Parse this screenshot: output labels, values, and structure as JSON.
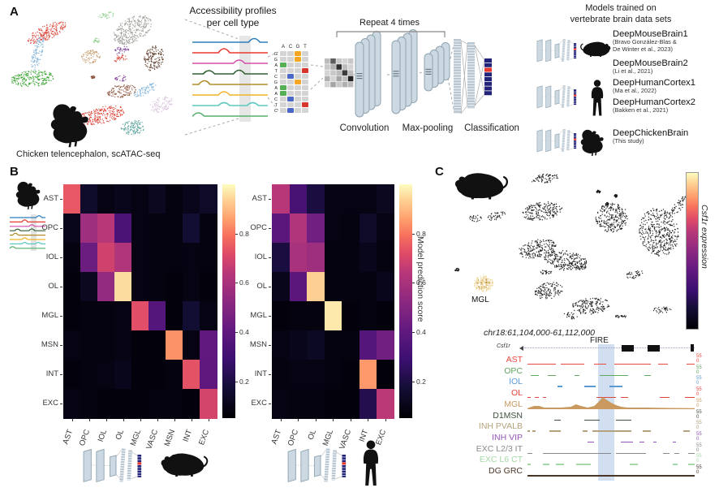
{
  "figure": {
    "panelA": {
      "label": "A",
      "umap_caption": "Chicken telencephalon, scATAC-seq",
      "profiles_title": [
        "Accessibility profiles",
        "per cell type"
      ],
      "profile_trace_colors": [
        "#2e7ebc",
        "#e8392f",
        "#d44fa8",
        "#2f5e33",
        "#b08d2a",
        "#f0b429",
        "#5fc9c2",
        "#54b06a"
      ],
      "umap_cluster_colors": [
        "#d93a2b",
        "#7fb3d8",
        "#33a02c",
        "#c79a6b",
        "#989a92",
        "#5a3a28",
        "#7d3f98",
        "#8fd18f",
        "#d9c1dd",
        "#4f9b94",
        "#8a5138",
        "#111111",
        "#ecd28c"
      ],
      "sequence": {
        "column_headers": [
          "A",
          "C",
          "G",
          "T"
        ],
        "row_letters": [
          "G",
          "G",
          "A",
          "T",
          "C",
          "G",
          "A",
          "A",
          "C",
          "T",
          "C"
        ],
        "base_colors": {
          "A": "#53b153",
          "C": "#4a67c8",
          "G": "#f5a623",
          "T": "#d9332e"
        },
        "cell_bg": "#d4d4d4"
      },
      "feature_matrix": [
        [
          0.2,
          0.6,
          0.15,
          0.1,
          0.15
        ],
        [
          0.15,
          0.25,
          0.8,
          0.2,
          0.1
        ],
        [
          0.1,
          0.15,
          0.2,
          0.75,
          0.2
        ],
        [
          0.25,
          0.1,
          0.3,
          0.2,
          0.85
        ],
        [
          0.1,
          0.3,
          0.15,
          0.25,
          0.2
        ]
      ],
      "cnn": {
        "repeat_label": "Repeat 4 times",
        "stages": [
          "Convolution",
          "Max-pooling",
          "Classification"
        ],
        "layer_fill": "#ccd9e2",
        "layer_stroke": "#8fa3b0",
        "output_color": "#23237a",
        "output_highlight": "#e8392f"
      },
      "models": {
        "title": [
          "Models trained on",
          "vertebrate brain data sets"
        ],
        "items": [
          {
            "name": "DeepMouseBrain1",
            "citation_lines": [
              "(Bravo González-Blas &",
              "De Winter et al., 2023)"
            ],
            "animal": "mouse"
          },
          {
            "name": "DeepMouseBrain2",
            "citation_lines": [
              "(Li et al., 2021)"
            ],
            "animal": ""
          },
          {
            "name": "DeepHumanCortex1",
            "citation_lines": [
              "(Ma et al., 2022)"
            ],
            "animal": "human"
          },
          {
            "name": "DeepHumanCortex2",
            "citation_lines": [
              "(Bakken et al., 2021)"
            ],
            "animal": ""
          },
          {
            "name": "DeepChickenBrain",
            "citation_lines": [
              "(This study)"
            ],
            "animal": "chicken"
          }
        ]
      }
    },
    "panelB": {
      "label": "B",
      "colorbar_label": "Model prediction score"
    },
    "panelC": {
      "label": "C",
      "cluster_label": "MGL",
      "expression_gene": "Csf1r",
      "expression_suffix": " expression",
      "browser": {
        "region": "chr18:61,104,000-61,112,000",
        "gene_label": "Csf1r",
        "highlight_label": "FIRE"
      }
    }
  },
  "chart_data": [
    {
      "id": "confusion-matrix-left",
      "type": "heatmap",
      "x_categories": [
        "AST",
        "OPC",
        "IOL",
        "OL",
        "MGL",
        "VASC",
        "MSN",
        "INT",
        "EXC"
      ],
      "y_categories": [
        "AST",
        "OPC",
        "IOL",
        "OL",
        "MGL",
        "MSN",
        "INT",
        "EXC"
      ],
      "values": [
        [
          0.73,
          0.1,
          0.04,
          0.06,
          0.04,
          0.07,
          0.03,
          0.06,
          0.09
        ],
        [
          0.06,
          0.55,
          0.62,
          0.3,
          0.04,
          0.03,
          0.03,
          0.12,
          0.03
        ],
        [
          0.03,
          0.4,
          0.67,
          0.6,
          0.04,
          0.03,
          0.03,
          0.04,
          0.03
        ],
        [
          0.02,
          0.07,
          0.52,
          0.95,
          0.04,
          0.03,
          0.02,
          0.04,
          0.02
        ],
        [
          0.02,
          0.03,
          0.03,
          0.04,
          0.71,
          0.33,
          0.02,
          0.12,
          0.04
        ],
        [
          0.04,
          0.03,
          0.03,
          0.04,
          0.02,
          0.02,
          0.83,
          0.04,
          0.37
        ],
        [
          0.02,
          0.03,
          0.04,
          0.06,
          0.02,
          0.02,
          0.03,
          0.72,
          0.36
        ],
        [
          0.04,
          0.03,
          0.02,
          0.02,
          0.02,
          0.03,
          0.03,
          0.02,
          0.68
        ]
      ],
      "colormap": "magma",
      "vmin": 0,
      "vmax": 1,
      "colorbar_ticks": [
        0.8,
        0.6,
        0.4,
        0.2
      ]
    },
    {
      "id": "confusion-matrix-right",
      "type": "heatmap",
      "x_categories": [
        "AST",
        "OPC",
        "OL",
        "MGL",
        "VASC",
        "INT",
        "EXC"
      ],
      "y_categories": [
        "AST",
        "OPC",
        "IOL",
        "OL",
        "MGL",
        "MSN",
        "INT",
        "EXC"
      ],
      "values": [
        [
          0.62,
          0.29,
          0.15,
          0.04,
          0.04,
          0.04,
          0.07
        ],
        [
          0.35,
          0.6,
          0.42,
          0.04,
          0.03,
          0.09,
          0.04
        ],
        [
          0.15,
          0.58,
          0.55,
          0.03,
          0.03,
          0.06,
          0.03
        ],
        [
          0.06,
          0.35,
          0.93,
          0.03,
          0.03,
          0.03,
          0.06
        ],
        [
          0.02,
          0.03,
          0.03,
          0.97,
          0.02,
          0.03,
          0.02
        ],
        [
          0.04,
          0.06,
          0.08,
          0.03,
          0.03,
          0.33,
          0.42
        ],
        [
          0.03,
          0.04,
          0.04,
          0.03,
          0.02,
          0.84,
          0.02
        ],
        [
          0.04,
          0.03,
          0.03,
          0.02,
          0.02,
          0.18,
          0.63
        ]
      ],
      "colormap": "magma",
      "vmin": 0,
      "vmax": 1,
      "colorbar_ticks": [
        0.8,
        0.6,
        0.4,
        0.2
      ],
      "colorbar_label": "Model prediction score"
    },
    {
      "id": "genome-browser",
      "type": "area",
      "region": "chr18:61,104,000-61,112,000",
      "gene": "Csf1r",
      "highlight_label": "FIRE",
      "highlight_region_frac": [
        0.42,
        0.52
      ],
      "scale_max": "55",
      "scale_min": "0",
      "tracks": [
        {
          "name": "AST",
          "color": "#e8483f",
          "style": "dashes",
          "dashes": [
            [
              0,
              0.17
            ],
            [
              0.2,
              0.34
            ],
            [
              0.4,
              0.47
            ],
            [
              0.52,
              0.74
            ],
            [
              0.78,
              0.84
            ],
            [
              0.95,
              1
            ]
          ]
        },
        {
          "name": "OPC",
          "color": "#61a861",
          "style": "dashes",
          "dashes": [
            [
              0.02,
              0.07
            ],
            [
              0.12,
              0.17
            ],
            [
              0.28,
              0.31
            ],
            [
              0.43,
              0.6
            ],
            [
              0.7,
              0.74
            ]
          ]
        },
        {
          "name": "IOL",
          "color": "#5a9bd4",
          "style": "dashes",
          "dashes": [
            [
              0.18,
              0.21
            ],
            [
              0.34,
              0.41
            ],
            [
              0.49,
              0.57
            ]
          ]
        },
        {
          "name": "OL",
          "color": "#e0453c",
          "style": "dashes",
          "dashes": [
            [
              0,
              0.02
            ],
            [
              0.045,
              0.07
            ],
            [
              0.09,
              0.11
            ],
            [
              0.41,
              0.53
            ],
            [
              0.56,
              0.6
            ],
            [
              0.79,
              0.85
            ],
            [
              0.94,
              1
            ]
          ]
        },
        {
          "name": "MGL",
          "color": "#c99960",
          "style": "peaks",
          "dashes": [
            [
              0,
              1
            ]
          ],
          "profile": [
            [
              0,
              0
            ],
            [
              0.01,
              1
            ],
            [
              0.04,
              3
            ],
            [
              0.07,
              3
            ],
            [
              0.1,
              1
            ],
            [
              0.2,
              1
            ],
            [
              0.26,
              2
            ],
            [
              0.29,
              5
            ],
            [
              0.32,
              3
            ],
            [
              0.36,
              1
            ],
            [
              0.4,
              3
            ],
            [
              0.43,
              9
            ],
            [
              0.45,
              14
            ],
            [
              0.47,
              11
            ],
            [
              0.5,
              7
            ],
            [
              0.53,
              4
            ],
            [
              0.56,
              2
            ],
            [
              0.6,
              1
            ],
            [
              0.7,
              1
            ],
            [
              0.85,
              0.5
            ],
            [
              1,
              0.3
            ]
          ]
        },
        {
          "name": "D1MSN",
          "color": "#3d4f3d",
          "style": "dashes",
          "dashes": [
            [
              0.16,
              0.2
            ],
            [
              0.34,
              0.43
            ],
            [
              0.53,
              0.62
            ]
          ]
        },
        {
          "name": "INH PVALB",
          "color": "#b3a27d",
          "style": "dashes",
          "dashes": [
            [
              0,
              0.015
            ],
            [
              0.03,
              0.05
            ],
            [
              0.13,
              0.2
            ],
            [
              0.33,
              0.36
            ],
            [
              0.39,
              0.62
            ],
            [
              0.69,
              0.74
            ],
            [
              0.93,
              0.97
            ]
          ]
        },
        {
          "name": "INH VIP",
          "color": "#9455b8",
          "style": "dashes",
          "dashes": [
            [
              0.36,
              0.4
            ],
            [
              0.56,
              0.63
            ],
            [
              0.67,
              0.7
            ],
            [
              0.75,
              0.77
            ],
            [
              0.87,
              0.89
            ]
          ]
        },
        {
          "name": "EXC L2/3 IT",
          "color": "#8a8a8a",
          "style": "dashes",
          "dashes": [
            [
              0,
              0.03
            ],
            [
              0.09,
              0.5
            ],
            [
              0.53,
              0.71
            ],
            [
              0.81,
              0.85
            ],
            [
              0.88,
              0.91
            ],
            [
              0.96,
              1
            ]
          ]
        },
        {
          "name": "EXC L6 CT",
          "color": "#a6d8a6",
          "style": "dashes",
          "dashes": [
            [
              0,
              0.02
            ],
            [
              0.09,
              0.13
            ],
            [
              0.17,
              0.22
            ],
            [
              0.29,
              0.38
            ],
            [
              0.61,
              0.66
            ],
            [
              0.87,
              0.9
            ],
            [
              0.96,
              1
            ]
          ]
        },
        {
          "name": "DG GRC",
          "color": "#4a3527",
          "style": "solid",
          "dashes": [
            [
              0,
              1
            ]
          ]
        }
      ]
    }
  ]
}
